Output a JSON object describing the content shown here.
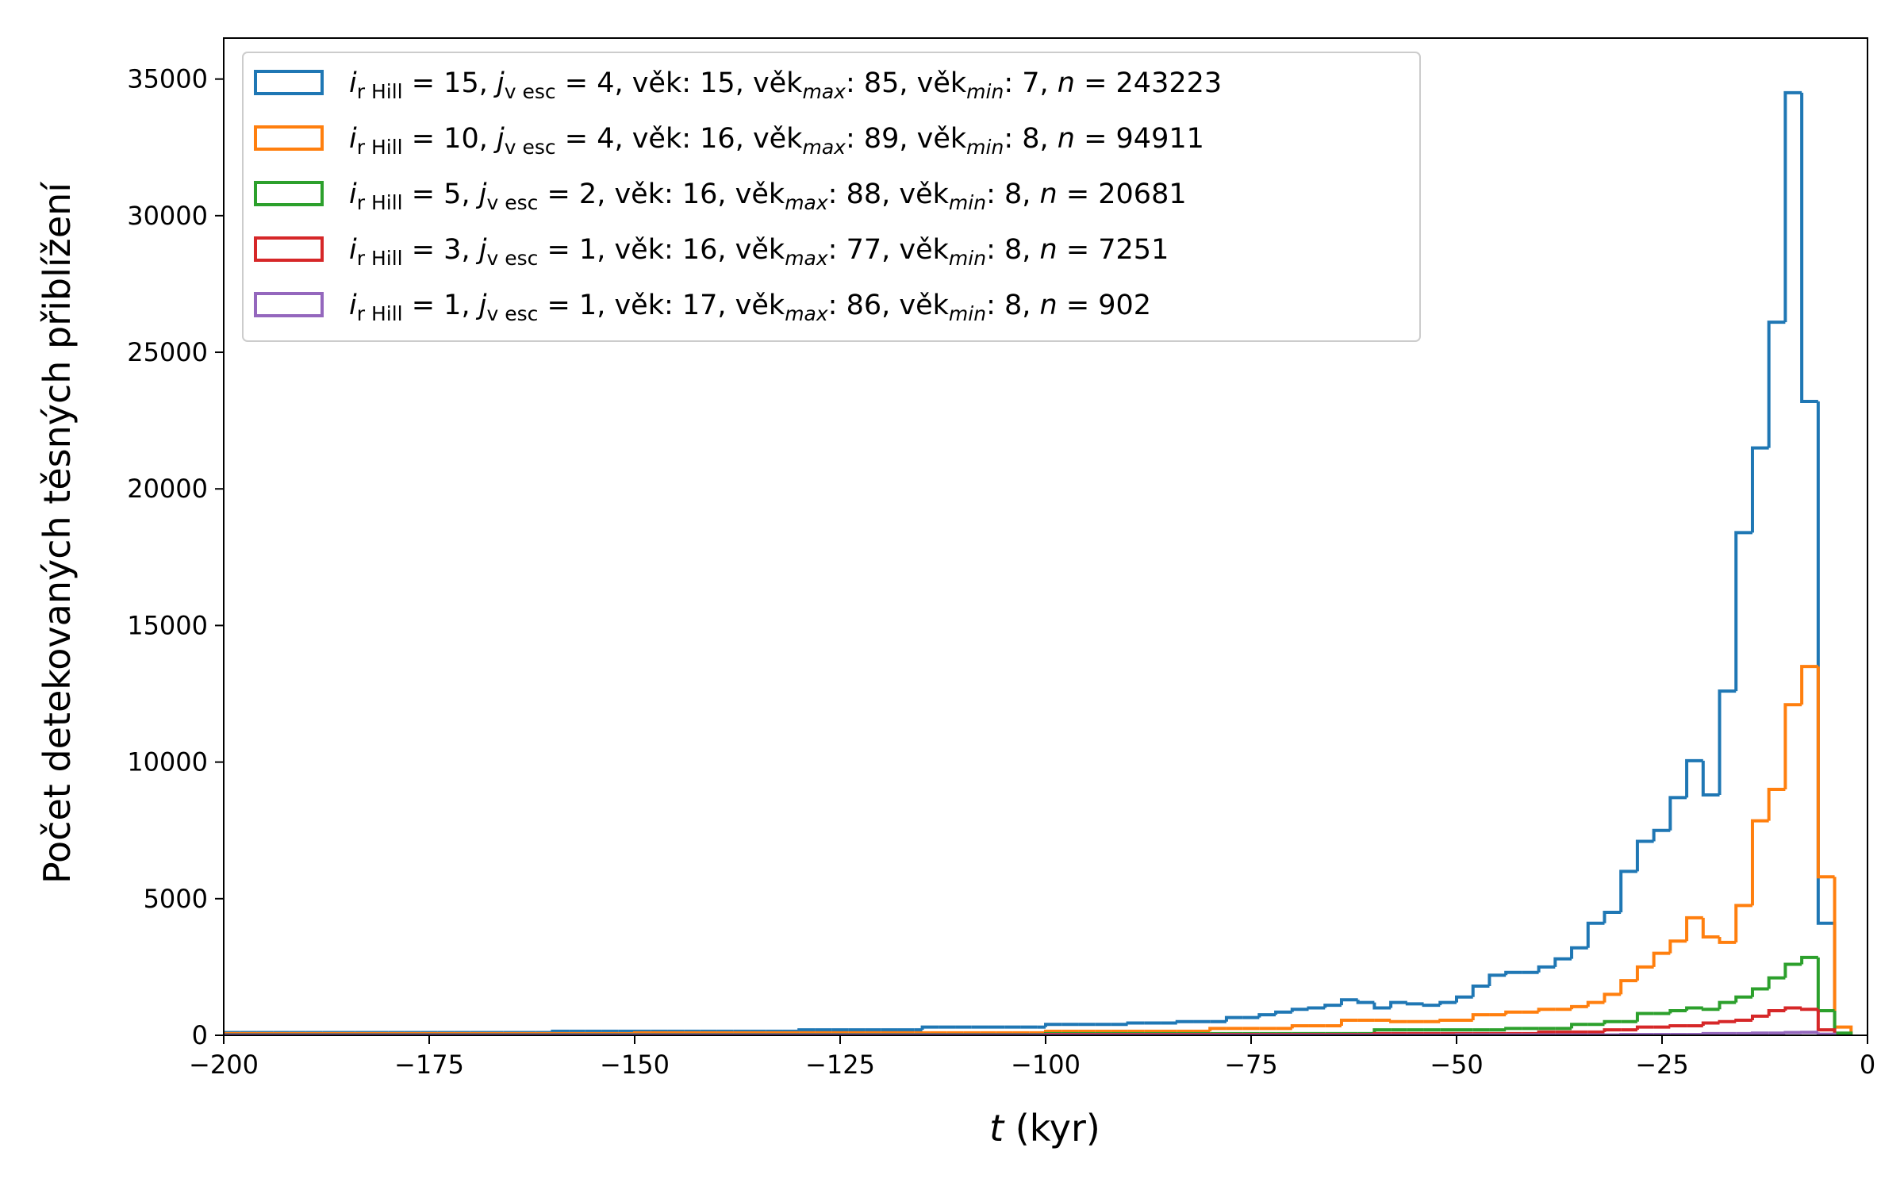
{
  "chart_data": {
    "type": "histogram-step",
    "xlabel_var": "t",
    "xlabel_unit": " (kyr)",
    "ylabel": "Počet detekovaných těsných přiblížení",
    "xlim": [
      -200,
      0
    ],
    "ylim": [
      0,
      36500
    ],
    "bin_width": 2,
    "x_ticks": [
      -200,
      -175,
      -150,
      -125,
      -100,
      -75,
      -50,
      -25,
      0
    ],
    "y_ticks": [
      0,
      5000,
      10000,
      15000,
      20000,
      25000,
      30000,
      35000
    ],
    "grid": false,
    "legend_position": "top-left",
    "series": [
      {
        "color": "#1f77b4",
        "legend": {
          "i": "15",
          "j": "4",
          "vek": "15",
          "vekmax": "85",
          "vekmin": "7",
          "n": "243223"
        },
        "bins": [
          [
            -200,
            -160,
            100
          ],
          [
            -160,
            -130,
            150
          ],
          [
            -130,
            -115,
            200
          ],
          [
            -115,
            -100,
            300
          ],
          [
            -100,
            -90,
            400
          ],
          [
            -90,
            -84,
            450
          ],
          [
            -84,
            -78,
            500
          ],
          [
            -78,
            -74,
            650
          ],
          [
            -74,
            -72,
            750
          ],
          [
            -72,
            -70,
            850
          ],
          [
            -70,
            -68,
            950
          ],
          [
            -68,
            -66,
            1000
          ],
          [
            -66,
            -64,
            1100
          ],
          [
            -64,
            -62,
            1300
          ],
          [
            -62,
            -60,
            1200
          ],
          [
            -60,
            -58,
            1000
          ],
          [
            -58,
            -56,
            1200
          ],
          [
            -56,
            -54,
            1150
          ],
          [
            -54,
            -52,
            1100
          ],
          [
            -52,
            -50,
            1200
          ],
          [
            -50,
            -48,
            1400
          ],
          [
            -48,
            -46,
            1800
          ],
          [
            -46,
            -44,
            2200
          ],
          [
            -44,
            -40,
            2300
          ],
          [
            -40,
            -38,
            2500
          ],
          [
            -38,
            -36,
            2800
          ],
          [
            -36,
            -34,
            3200
          ],
          [
            -34,
            -32,
            4100
          ],
          [
            -32,
            -30,
            4500
          ],
          [
            -30,
            -28,
            6000
          ],
          [
            -28,
            -26,
            7100
          ],
          [
            -26,
            -24,
            7500
          ],
          [
            -24,
            -22,
            8700
          ],
          [
            -22,
            -20,
            10050
          ],
          [
            -20,
            -18,
            8800
          ],
          [
            -18,
            -16,
            12600
          ],
          [
            -16,
            -14,
            18400
          ],
          [
            -14,
            -12,
            21500
          ],
          [
            -12,
            -10,
            26100
          ],
          [
            -10,
            -8,
            34500
          ],
          [
            -8,
            -6,
            23200
          ],
          [
            -6,
            -4,
            4100
          ]
        ]
      },
      {
        "color": "#ff7f0e",
        "legend": {
          "i": "10",
          "j": "4",
          "vek": "16",
          "vekmax": "89",
          "vekmin": "8",
          "n": "94911"
        },
        "bins": [
          [
            -200,
            -150,
            60
          ],
          [
            -150,
            -100,
            90
          ],
          [
            -100,
            -80,
            150
          ],
          [
            -80,
            -70,
            250
          ],
          [
            -70,
            -64,
            350
          ],
          [
            -64,
            -58,
            550
          ],
          [
            -58,
            -52,
            500
          ],
          [
            -52,
            -48,
            550
          ],
          [
            -48,
            -44,
            750
          ],
          [
            -44,
            -40,
            850
          ],
          [
            -40,
            -36,
            950
          ],
          [
            -36,
            -34,
            1050
          ],
          [
            -34,
            -32,
            1200
          ],
          [
            -32,
            -30,
            1500
          ],
          [
            -30,
            -28,
            2000
          ],
          [
            -28,
            -26,
            2500
          ],
          [
            -26,
            -24,
            3000
          ],
          [
            -24,
            -22,
            3450
          ],
          [
            -22,
            -20,
            4300
          ],
          [
            -20,
            -18,
            3600
          ],
          [
            -18,
            -16,
            3400
          ],
          [
            -16,
            -14,
            4750
          ],
          [
            -14,
            -12,
            7850
          ],
          [
            -12,
            -10,
            9000
          ],
          [
            -10,
            -8,
            12100
          ],
          [
            -8,
            -6,
            13500
          ],
          [
            -6,
            -4,
            5800
          ],
          [
            -4,
            -2,
            300
          ]
        ]
      },
      {
        "color": "#2ca02c",
        "legend": {
          "i": " 5",
          "j": "2",
          "vek": "16",
          "vekmax": "88",
          "vekmin": "8",
          "n": "20681"
        },
        "bins": [
          [
            -200,
            -100,
            30
          ],
          [
            -100,
            -60,
            60
          ],
          [
            -60,
            -44,
            200
          ],
          [
            -44,
            -36,
            250
          ],
          [
            -36,
            -32,
            400
          ],
          [
            -32,
            -28,
            500
          ],
          [
            -28,
            -24,
            800
          ],
          [
            -24,
            -22,
            900
          ],
          [
            -22,
            -20,
            1000
          ],
          [
            -20,
            -18,
            950
          ],
          [
            -18,
            -16,
            1200
          ],
          [
            -16,
            -14,
            1400
          ],
          [
            -14,
            -12,
            1700
          ],
          [
            -12,
            -10,
            2100
          ],
          [
            -10,
            -8,
            2600
          ],
          [
            -8,
            -6,
            2850
          ],
          [
            -6,
            -4,
            900
          ],
          [
            -4,
            -2,
            80
          ]
        ]
      },
      {
        "color": "#d62728",
        "legend": {
          "i": " 3",
          "j": "1",
          "vek": "16",
          "vekmax": "77",
          "vekmin": "8",
          "n": "7251"
        },
        "bins": [
          [
            -200,
            -100,
            15
          ],
          [
            -100,
            -60,
            30
          ],
          [
            -60,
            -40,
            60
          ],
          [
            -40,
            -32,
            120
          ],
          [
            -32,
            -28,
            200
          ],
          [
            -28,
            -24,
            300
          ],
          [
            -24,
            -20,
            350
          ],
          [
            -20,
            -18,
            450
          ],
          [
            -18,
            -16,
            500
          ],
          [
            -16,
            -14,
            550
          ],
          [
            -14,
            -12,
            700
          ],
          [
            -12,
            -10,
            900
          ],
          [
            -10,
            -8,
            1000
          ],
          [
            -8,
            -6,
            950
          ],
          [
            -6,
            -4,
            200
          ]
        ]
      },
      {
        "color": "#9467bd",
        "legend": {
          "i": " 1",
          "j": "1",
          "vek": "17",
          "vekmax": "86",
          "vekmin": "8",
          "n": "902"
        },
        "bins": [
          [
            -200,
            -50,
            5
          ],
          [
            -50,
            -30,
            15
          ],
          [
            -30,
            -20,
            30
          ],
          [
            -20,
            -14,
            60
          ],
          [
            -14,
            -10,
            80
          ],
          [
            -10,
            -8,
            100
          ],
          [
            -8,
            -6,
            110
          ],
          [
            -6,
            -4,
            40
          ]
        ]
      }
    ]
  }
}
